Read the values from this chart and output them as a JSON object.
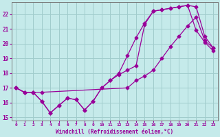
{
  "xlabel": "Windchill (Refroidissement éolien,°C)",
  "background_color": "#c5eaea",
  "grid_color": "#a0cccc",
  "line_color": "#990099",
  "xlim": [
    -0.5,
    23.5
  ],
  "ylim": [
    14.8,
    22.8
  ],
  "yticks": [
    15,
    16,
    17,
    18,
    19,
    20,
    21,
    22
  ],
  "xticks": [
    0,
    1,
    2,
    3,
    4,
    5,
    6,
    7,
    8,
    9,
    10,
    11,
    12,
    13,
    14,
    15,
    16,
    17,
    18,
    19,
    20,
    21,
    22,
    23
  ],
  "line1_x": [
    0,
    1,
    2,
    3,
    4,
    5,
    6,
    7,
    8,
    9,
    10,
    11,
    12,
    13,
    14,
    15,
    16,
    17,
    18,
    19,
    20,
    21,
    22,
    23
  ],
  "line1_y": [
    17.0,
    16.7,
    16.7,
    16.1,
    15.3,
    15.8,
    16.3,
    16.2,
    15.5,
    16.1,
    17.0,
    17.5,
    17.9,
    18.2,
    18.5,
    21.3,
    22.2,
    22.3,
    22.4,
    22.5,
    22.6,
    20.9,
    20.1,
    19.5
  ],
  "line2_x": [
    0,
    1,
    2,
    3,
    4,
    5,
    6,
    7,
    8,
    9,
    10,
    11,
    12,
    13,
    14,
    15,
    16,
    17,
    18,
    19,
    20,
    21,
    22,
    23
  ],
  "line2_y": [
    17.0,
    16.7,
    16.7,
    16.1,
    15.3,
    15.8,
    16.3,
    16.2,
    15.5,
    16.1,
    17.0,
    17.5,
    18.0,
    19.2,
    20.4,
    21.4,
    22.2,
    22.3,
    22.4,
    22.5,
    22.6,
    22.5,
    20.5,
    19.7
  ],
  "line3_x": [
    0,
    1,
    2,
    3,
    13,
    14,
    15,
    16,
    17,
    18,
    19,
    20,
    21,
    22,
    23
  ],
  "line3_y": [
    17.0,
    16.7,
    16.7,
    16.7,
    17.0,
    17.5,
    17.8,
    18.2,
    19.0,
    19.8,
    20.5,
    21.2,
    21.8,
    20.2,
    19.7
  ]
}
